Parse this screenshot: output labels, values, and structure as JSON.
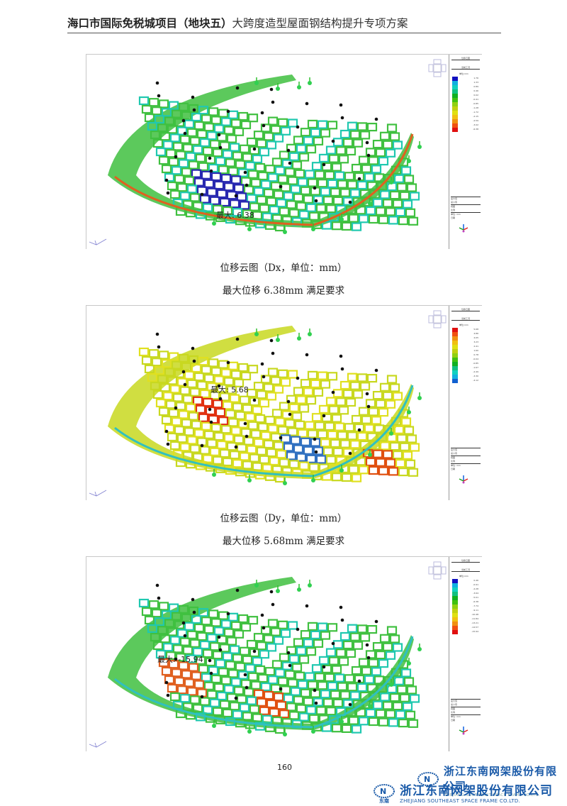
{
  "header": {
    "title_bold": "海口市国际免税城项目（地块五）",
    "title_rest": "大跨度造型屋面钢结构提升专项方案"
  },
  "figures": [
    {
      "id": "dx",
      "max_label": "最大: 6.38",
      "caption": "位移云图（Dx，单位：mm）",
      "conclusion": "最大位移 6.38mm 满足要求",
      "legend_colors": [
        "#1010c0",
        "#10b0e0",
        "#10d0c0",
        "#10c080",
        "#10b020",
        "#40c010",
        "#90d010",
        "#c0d010",
        "#e0e010",
        "#f0c010",
        "#f09010",
        "#f05010",
        "#e01010"
      ],
      "legend_values": [
        "1.76",
        "1.33",
        "0.89",
        "0.46",
        "0.02",
        "-0.41",
        "-0.85",
        "-1.28",
        "-1.72",
        "-2.15",
        "-2.59",
        "-3.02",
        "-6.38"
      ]
    },
    {
      "id": "dy",
      "max_label": "最大: 5.68",
      "caption": "位移云图（Dy，单位：mm）",
      "conclusion": "最大位移 5.68mm 满足要求",
      "legend_colors": [
        "#e01010",
        "#f05010",
        "#f09010",
        "#f0c010",
        "#e0e010",
        "#c0d010",
        "#90d010",
        "#40c010",
        "#10b020",
        "#10c080",
        "#10d0c0",
        "#10b0e0",
        "#1060d0"
      ],
      "legend_values": [
        "5.68",
        "4.86",
        "4.05",
        "3.23",
        "2.41",
        "1.60",
        "0.78",
        "-0.04",
        "-0.85",
        "-1.67",
        "-2.49",
        "-3.30",
        "-4.12"
      ]
    },
    {
      "id": "dz",
      "max_label": "最大: -15.94",
      "caption": "",
      "conclusion": "",
      "legend_colors": [
        "#1010c0",
        "#10b0e0",
        "#10d0c0",
        "#10c080",
        "#10b020",
        "#40c010",
        "#90d010",
        "#c0d010",
        "#e0e010",
        "#f0c010",
        "#f09010",
        "#f05010",
        "#e01010"
      ],
      "legend_values": [
        "0.46",
        "-0.91",
        "-2.28",
        "-3.64",
        "-5.01",
        "-6.38",
        "-7.74",
        "-9.11",
        "-10.48",
        "-11.84",
        "-13.21",
        "-14.57",
        "-15.94"
      ]
    }
  ],
  "legend_common": {
    "title": "位移云图",
    "subtitle": "当前工况",
    "unit": "单位:mm",
    "info_lines": [
      "最大值",
      "最小值",
      "视图",
      "比例",
      "单位: mm",
      "日期"
    ]
  },
  "footer": {
    "page_number": "160",
    "company_cn": "浙江东南网架股份有限公司",
    "company_en": "ZHEJIANG SOUTHEAST SPACE FRAME CO.LTD.",
    "logo_mark": "东南"
  }
}
